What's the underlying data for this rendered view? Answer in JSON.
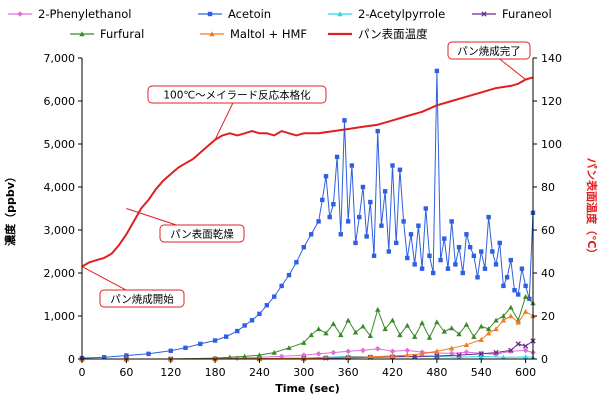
{
  "chart_data": {
    "type": "line",
    "xlabel": "Time (sec)",
    "ylabel_left": "濃度（ppbv）",
    "ylabel_right": "パン表面温度（℃）",
    "x_range": [
      0,
      610
    ],
    "y_left_range": [
      0,
      7000
    ],
    "y_right_range": [
      0,
      140
    ],
    "x_ticks": [
      0,
      60,
      120,
      180,
      240,
      300,
      360,
      420,
      480,
      540,
      600
    ],
    "y_left_ticks": [
      0,
      1000,
      2000,
      3000,
      4000,
      5000,
      6000,
      7000
    ],
    "y_right_ticks": [
      0,
      20,
      40,
      60,
      80,
      100,
      120,
      140
    ],
    "grid": false,
    "legend_placement": "top",
    "series": [
      {
        "name": "2-Phenylethanol",
        "axis": "left",
        "color": "#e070d8",
        "marker": "diamond",
        "x": [
          0,
          60,
          120,
          180,
          210,
          240,
          270,
          300,
          320,
          340,
          360,
          380,
          400,
          420,
          440,
          460,
          480,
          500,
          520,
          540,
          560,
          580,
          600,
          610
        ],
        "y": [
          0,
          0,
          0,
          10,
          20,
          40,
          60,
          90,
          120,
          150,
          180,
          200,
          240,
          180,
          200,
          160,
          140,
          130,
          160,
          130,
          110,
          180,
          200,
          150
        ]
      },
      {
        "name": "Acetoin",
        "axis": "left",
        "color": "#2d5fe0",
        "marker": "square",
        "x": [
          0,
          30,
          60,
          90,
          120,
          140,
          160,
          180,
          195,
          210,
          220,
          230,
          240,
          250,
          260,
          270,
          280,
          290,
          300,
          310,
          320,
          325,
          330,
          335,
          340,
          345,
          350,
          355,
          360,
          365,
          370,
          375,
          380,
          385,
          390,
          395,
          400,
          405,
          410,
          415,
          420,
          425,
          430,
          435,
          440,
          445,
          450,
          455,
          460,
          465,
          470,
          475,
          480,
          485,
          490,
          495,
          500,
          505,
          510,
          515,
          520,
          525,
          530,
          535,
          540,
          545,
          550,
          555,
          560,
          565,
          570,
          575,
          580,
          585,
          590,
          595,
          600,
          605,
          610
        ],
        "y": [
          20,
          40,
          80,
          120,
          190,
          260,
          350,
          430,
          520,
          650,
          780,
          900,
          1050,
          1250,
          1450,
          1700,
          1950,
          2250,
          2600,
          2900,
          3200,
          3700,
          4250,
          3300,
          3600,
          4700,
          2900,
          5550,
          3200,
          4500,
          2700,
          3300,
          4000,
          2850,
          3650,
          2400,
          5300,
          3100,
          3900,
          2500,
          4500,
          2700,
          4400,
          3200,
          2350,
          2900,
          2200,
          3100,
          2100,
          3500,
          2400,
          2000,
          6700,
          2300,
          2800,
          2100,
          3200,
          2200,
          2600,
          2000,
          2900,
          2600,
          2400,
          1900,
          2500,
          2100,
          3300,
          2500,
          2200,
          2700,
          1700,
          1900,
          2300,
          1600,
          1500,
          2100,
          1700,
          1400,
          3400
        ]
      },
      {
        "name": "2-Acetylpyrrole",
        "axis": "left",
        "color": "#30d8e8",
        "marker": "triangle",
        "x": [
          0,
          60,
          120,
          180,
          240,
          300,
          330,
          360,
          390,
          420,
          450,
          480,
          510,
          540,
          570,
          600,
          610
        ],
        "y": [
          0,
          0,
          0,
          5,
          10,
          20,
          40,
          60,
          50,
          70,
          50,
          60,
          40,
          60,
          40,
          50,
          40
        ]
      },
      {
        "name": "Furaneol",
        "axis": "left",
        "color": "#6a2a8a",
        "marker": "x",
        "x": [
          0,
          60,
          120,
          180,
          240,
          300,
          330,
          360,
          390,
          420,
          450,
          480,
          510,
          540,
          560,
          580,
          590,
          600,
          610
        ],
        "y": [
          0,
          0,
          0,
          0,
          5,
          10,
          20,
          30,
          40,
          50,
          60,
          70,
          90,
          120,
          150,
          200,
          350,
          300,
          420
        ]
      },
      {
        "name": "Furfural",
        "axis": "left",
        "color": "#3a8a2a",
        "marker": "triangle",
        "x": [
          0,
          60,
          120,
          180,
          200,
          220,
          240,
          260,
          280,
          300,
          310,
          320,
          330,
          340,
          350,
          360,
          370,
          380,
          390,
          400,
          410,
          420,
          430,
          440,
          450,
          460,
          470,
          480,
          490,
          500,
          510,
          520,
          530,
          540,
          550,
          560,
          570,
          580,
          590,
          600,
          610
        ],
        "y": [
          0,
          0,
          0,
          20,
          40,
          60,
          90,
          150,
          260,
          380,
          560,
          700,
          600,
          820,
          560,
          900,
          620,
          760,
          540,
          1150,
          700,
          900,
          560,
          780,
          520,
          840,
          500,
          860,
          640,
          720,
          580,
          800,
          520,
          760,
          700,
          900,
          1000,
          1200,
          900,
          1450,
          1300
        ]
      },
      {
        "name": "Maltol + HMF",
        "axis": "left",
        "color": "#f07a20",
        "marker": "triangle",
        "x": [
          0,
          60,
          120,
          180,
          240,
          300,
          330,
          360,
          390,
          420,
          440,
          460,
          480,
          500,
          520,
          540,
          550,
          560,
          570,
          580,
          590,
          600,
          610
        ],
        "y": [
          0,
          0,
          0,
          5,
          10,
          20,
          30,
          40,
          50,
          70,
          90,
          120,
          180,
          250,
          330,
          450,
          600,
          700,
          900,
          1000,
          850,
          1100,
          1000
        ]
      },
      {
        "name": "パン表面温度",
        "axis": "right",
        "color": "#e02020",
        "marker": "none",
        "x": [
          0,
          10,
          20,
          30,
          40,
          50,
          60,
          70,
          80,
          90,
          100,
          110,
          120,
          130,
          140,
          150,
          160,
          170,
          180,
          190,
          200,
          210,
          220,
          230,
          240,
          250,
          260,
          270,
          280,
          290,
          300,
          320,
          340,
          360,
          380,
          400,
          420,
          440,
          460,
          480,
          500,
          520,
          540,
          560,
          580,
          590,
          600,
          610
        ],
        "y": [
          43,
          45,
          46,
          47,
          49,
          53,
          58,
          64,
          70,
          74,
          79,
          83,
          86,
          89,
          91,
          93,
          96,
          99,
          102,
          104,
          105,
          104,
          105,
          106,
          105,
          105,
          104,
          106,
          105,
          104,
          105,
          105,
          106,
          107,
          108,
          109,
          111,
          113,
          115,
          118,
          120,
          122,
          124,
          126,
          127,
          128,
          130,
          131
        ]
      }
    ],
    "annotations": [
      {
        "text": "パン焼成開始",
        "x": 0,
        "y_right": 43
      },
      {
        "text": "パン表面乾燥",
        "x": 60,
        "y_right": 70
      },
      {
        "text": "100℃～メイラード反応本格化",
        "x": 180,
        "y_right": 102
      },
      {
        "text": "パン焼成完了",
        "x": 600,
        "y_right": 130
      }
    ]
  }
}
